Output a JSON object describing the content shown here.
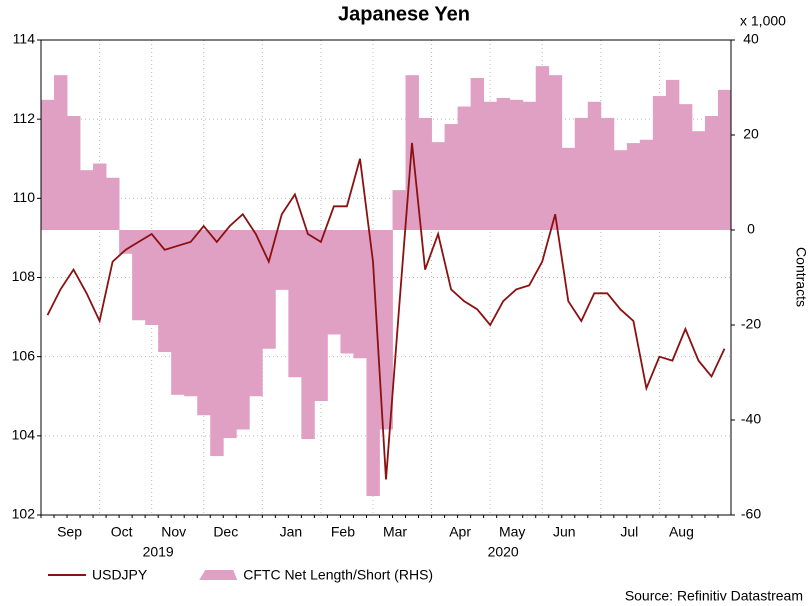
{
  "chart_data": {
    "type": "line",
    "title": "Japanese Yen",
    "y2_unit": "x 1,000",
    "y2label": "Contracts",
    "source": "Source: Refinitiv Datastream",
    "years": [
      "2019",
      "2020"
    ],
    "categories": [
      null,
      null,
      "Sep",
      null,
      null,
      null,
      "Oct",
      null,
      null,
      null,
      "Nov",
      null,
      null,
      null,
      "Dec",
      null,
      null,
      null,
      null,
      "Jan",
      null,
      null,
      null,
      "Feb",
      null,
      null,
      null,
      "Mar",
      null,
      null,
      null,
      null,
      "Apr",
      null,
      null,
      null,
      "May",
      null,
      null,
      null,
      "Jun",
      null,
      null,
      null,
      null,
      "Jul",
      null,
      null,
      null,
      "Aug",
      null,
      null,
      null
    ],
    "series": [
      {
        "name": "USDJPY",
        "color": "#8b1111",
        "axis": "y",
        "kind": "line",
        "values": [
          107.05,
          107.7,
          108.2,
          107.6,
          106.9,
          108.4,
          108.7,
          108.9,
          109.1,
          108.7,
          108.8,
          108.9,
          109.3,
          108.9,
          109.3,
          109.6,
          109.1,
          108.4,
          109.6,
          110.1,
          109.1,
          108.9,
          109.8,
          109.8,
          111.0,
          108.4,
          102.9,
          107.2,
          111.4,
          108.2,
          109.1,
          107.7,
          107.4,
          107.2,
          106.8,
          107.4,
          107.7,
          107.8,
          108.4,
          109.6,
          107.4,
          106.9,
          107.6,
          107.6,
          107.2,
          106.9,
          105.2,
          106.0,
          105.9,
          106.7,
          105.9,
          105.5,
          106.2
        ]
      },
      {
        "name": "CFTC Net Length/Short (RHS)",
        "color": "#e0a0c4",
        "axis": "y2",
        "kind": "step-area",
        "values": [
          27.4,
          32.6,
          24,
          12.6,
          14,
          11,
          -5,
          -19,
          -20,
          -25.7,
          -34.7,
          -35,
          -39,
          -47.6,
          -43.8,
          -42,
          -35,
          -25,
          -12.6,
          -31,
          -44,
          -36,
          -22,
          -26,
          -27,
          -56,
          -42,
          8.4,
          32.6,
          23.6,
          18.5,
          22.3,
          26,
          32,
          27,
          27.8,
          27.4,
          27,
          34.5,
          32.6,
          17.3,
          23.6,
          27,
          23.6,
          16.8,
          18.3,
          19,
          28.2,
          31.6,
          26.5,
          20.8,
          24,
          29.5
        ]
      }
    ],
    "ylim": [
      102,
      114
    ],
    "yticks": [
      102,
      104,
      106,
      108,
      110,
      112,
      114
    ],
    "y2lim": [
      -60,
      40
    ],
    "y2ticks": [
      -60,
      -40,
      -20,
      0,
      20,
      40
    ],
    "grid": true
  }
}
